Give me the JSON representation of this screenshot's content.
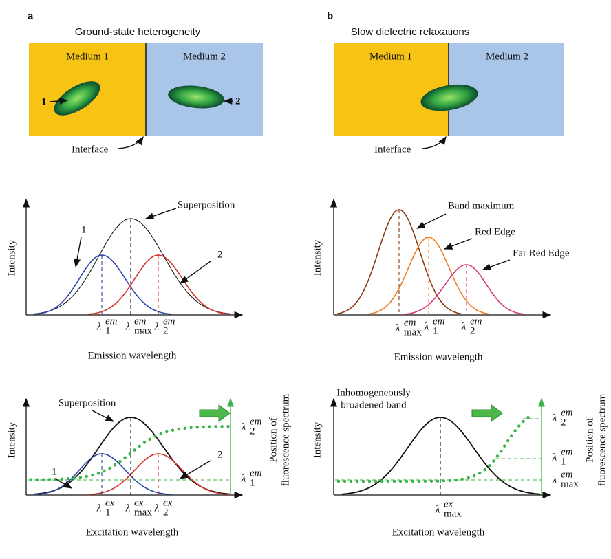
{
  "panels": [
    {
      "letter": "a",
      "title": "Ground-state heterogeneity",
      "schematic": {
        "left_medium": "Medium 1",
        "right_medium": "Medium 2",
        "left_label": "1",
        "right_label": "2",
        "interface": "Interface"
      },
      "emission": {
        "y_label": "Intensity",
        "x_label": "Emission wavelength",
        "annotations": {
          "sum": "Superposition",
          "left": "1",
          "right": "2"
        },
        "x_marks": [
          {
            "base": "λ",
            "sub": "1",
            "sup": "em"
          },
          {
            "base": "λ",
            "sub": "max",
            "sup": "em"
          },
          {
            "base": "λ",
            "sub": "2",
            "sup": "em"
          }
        ]
      },
      "excitation": {
        "y_label": "Intensity",
        "x_label": "Excitation wavelength",
        "annotations": {
          "sum": "Superposition",
          "left": "1",
          "right": "2"
        },
        "x_marks": [
          {
            "base": "λ",
            "sub": "1",
            "sup": "ex"
          },
          {
            "base": "λ",
            "sub": "max",
            "sup": "ex"
          },
          {
            "base": "λ",
            "sub": "2",
            "sup": "ex"
          }
        ],
        "y2_label": [
          "Position of",
          "fluorescence spectrum"
        ],
        "y2_marks": [
          {
            "base": "λ",
            "sub": "2",
            "sup": "em"
          },
          {
            "base": "λ",
            "sub": "1",
            "sup": "em"
          }
        ]
      }
    },
    {
      "letter": "b",
      "title": "Slow dielectric relaxations",
      "schematic": {
        "left_medium": "Medium 1",
        "right_medium": "Medium 2",
        "interface": "Interface"
      },
      "emission": {
        "y_label": "Intensity",
        "x_label": "Emission wavelength",
        "annotations": {
          "band_max": "Band maximum",
          "red_edge": "Red Edge",
          "far_red_edge": "Far Red Edge"
        },
        "x_marks": [
          {
            "base": "λ",
            "sub": "max",
            "sup": "em"
          },
          {
            "base": "λ",
            "sub": "1",
            "sup": "em"
          },
          {
            "base": "λ",
            "sub": "2",
            "sup": "em"
          }
        ]
      },
      "excitation": {
        "y_label": "Intensity",
        "x_label": "Excitation wavelength",
        "annotations": {
          "band": [
            "Inhomogeneously",
            "broadened band"
          ]
        },
        "x_marks": [
          {
            "base": "λ",
            "sub": "max",
            "sup": "ex"
          }
        ],
        "y2_label": [
          "Position of",
          "fluorescence spectrum"
        ],
        "y2_marks": [
          {
            "base": "λ",
            "sub": "2",
            "sup": "em"
          },
          {
            "base": "λ",
            "sub": "1",
            "sup": "em"
          },
          {
            "base": "λ",
            "sub": "max",
            "sup": "em"
          }
        ]
      }
    }
  ]
}
